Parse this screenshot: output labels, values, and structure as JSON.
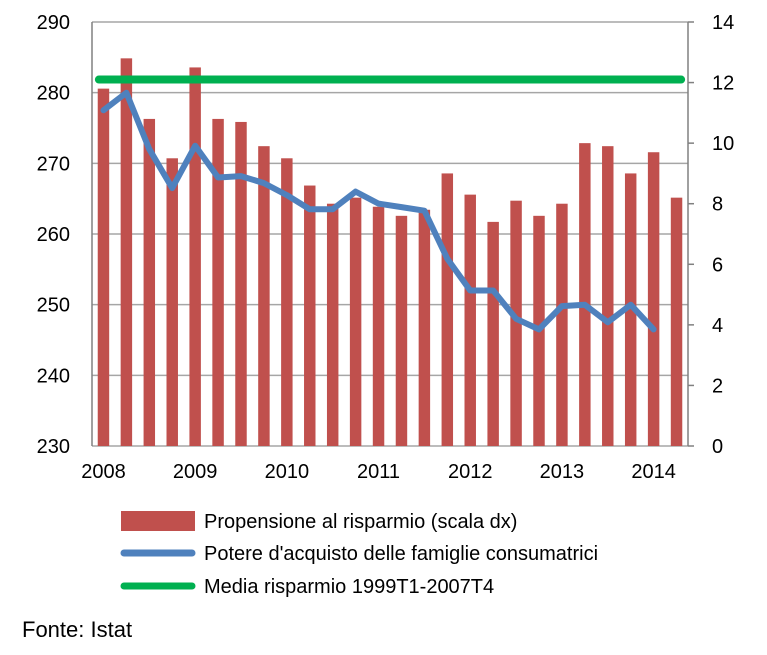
{
  "chart_data": {
    "type": "bar+line",
    "x_tick_labels": [
      "2008",
      "2009",
      "2010",
      "2011",
      "2012",
      "2013",
      "2014"
    ],
    "left_axis": {
      "ticks": [
        "230",
        "240",
        "250",
        "260",
        "270",
        "280",
        "290"
      ],
      "range": [
        230,
        290
      ]
    },
    "right_axis": {
      "ticks": [
        "0",
        "2",
        "4",
        "6",
        "8",
        "10",
        "12",
        "14"
      ],
      "range": [
        0,
        14
      ]
    },
    "grid": "horizontal",
    "legend_position": "bottom",
    "series": [
      {
        "name": "Propensione al risparmio (scala dx)",
        "kind": "bar",
        "axis": "right",
        "color": "#c0504d",
        "values": [
          11.8,
          12.8,
          10.8,
          9.5,
          12.5,
          10.8,
          10.7,
          9.9,
          9.5,
          8.6,
          8.0,
          8.2,
          7.9,
          7.6,
          7.8,
          9.0,
          8.3,
          7.4,
          8.1,
          7.6,
          8.0,
          10.0,
          9.9,
          9.0,
          9.7,
          8.2
        ]
      },
      {
        "name": "Potere d'acquisto delle famiglie consumatrici",
        "kind": "line",
        "axis": "left",
        "color": "#4f81bd",
        "values": [
          277.5,
          280.0,
          272.0,
          266.5,
          272.5,
          268.0,
          268.2,
          267.2,
          265.5,
          263.5,
          263.5,
          266.0,
          264.3,
          263.8,
          263.3,
          256.5,
          252.0,
          252.0,
          248.0,
          246.5,
          249.8,
          250.0,
          247.5,
          250.0,
          246.5
        ]
      },
      {
        "name": "Media risparmio 1999T1-2007T4",
        "kind": "line",
        "axis": "right",
        "color": "#00b050",
        "values": [
          12.1,
          12.1
        ]
      }
    ]
  },
  "source": "Fonte: Istat"
}
